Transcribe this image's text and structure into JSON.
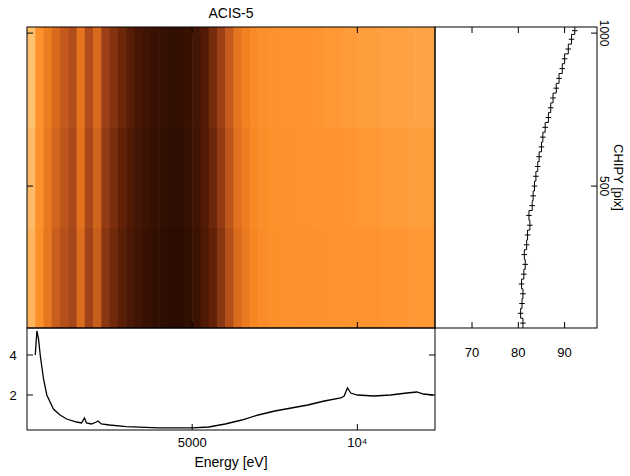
{
  "chart_data": [
    {
      "type": "heatmap",
      "title": "ACIS-5",
      "x_edges": [
        0,
        250,
        500,
        750,
        1000,
        1250,
        1500,
        1750,
        2000,
        2250,
        2500,
        2750,
        3000,
        3250,
        3500,
        3750,
        4000,
        4250,
        4500,
        4750,
        5000,
        5250,
        5500,
        5750,
        6000,
        6250,
        6500,
        6750,
        7000,
        7250,
        7500,
        7750,
        8000,
        8250,
        8500,
        8750,
        9000,
        9250,
        9500,
        9750,
        10000,
        10250,
        10500,
        10750,
        11000,
        11250,
        11500,
        11750,
        12000,
        12350
      ],
      "y_edges": [
        36,
        364,
        692,
        1020
      ],
      "cells": [
        [
          0.96,
          0.78,
          0.58,
          0.48,
          0.43,
          0.39,
          0.53,
          0.38,
          0.48,
          0.33,
          0.28,
          0.23,
          0.18,
          0.15,
          0.13,
          0.11,
          0.1,
          0.09,
          0.09,
          0.11,
          0.14,
          0.19,
          0.25,
          0.33,
          0.43,
          0.53,
          0.61,
          0.68,
          0.73,
          0.76,
          0.78,
          0.79,
          0.8,
          0.8,
          0.81,
          0.81,
          0.82,
          0.82,
          0.83,
          0.83,
          0.84,
          0.84,
          0.84,
          0.85,
          0.85,
          0.85,
          0.86,
          0.86,
          0.86
        ],
        [
          0.98,
          0.8,
          0.6,
          0.5,
          0.45,
          0.4,
          0.55,
          0.4,
          0.5,
          0.35,
          0.3,
          0.25,
          0.2,
          0.16,
          0.14,
          0.12,
          0.11,
          0.1,
          0.1,
          0.12,
          0.15,
          0.2,
          0.27,
          0.35,
          0.45,
          0.55,
          0.63,
          0.7,
          0.75,
          0.78,
          0.8,
          0.81,
          0.82,
          0.82,
          0.83,
          0.83,
          0.84,
          0.84,
          0.85,
          0.85,
          0.86,
          0.86,
          0.86,
          0.87,
          0.87,
          0.87,
          0.88,
          0.88,
          0.88
        ],
        [
          1.0,
          0.82,
          0.62,
          0.52,
          0.47,
          0.42,
          0.57,
          0.42,
          0.52,
          0.37,
          0.32,
          0.27,
          0.22,
          0.17,
          0.15,
          0.13,
          0.12,
          0.11,
          0.11,
          0.13,
          0.16,
          0.21,
          0.29,
          0.37,
          0.47,
          0.57,
          0.65,
          0.72,
          0.77,
          0.8,
          0.82,
          0.83,
          0.84,
          0.84,
          0.85,
          0.85,
          0.86,
          0.86,
          0.87,
          0.87,
          0.88,
          0.88,
          0.88,
          0.89,
          0.89,
          0.89,
          0.9,
          0.9,
          0.9
        ]
      ],
      "colors": [
        "#2b0c02",
        "#5e1f06",
        "#a8461a",
        "#e0701e",
        "#f88a24",
        "#ff9530",
        "#ffc070"
      ],
      "xlim": [
        0,
        12350
      ],
      "ylim": [
        36,
        1020
      ],
      "xticks": [
        5000,
        10000
      ],
      "yticks": [
        500,
        1000
      ],
      "tick_labels": false
    },
    {
      "type": "line",
      "x_label": "Energy [eV]",
      "color": "#000000",
      "x": [
        250,
        300,
        350,
        400,
        500,
        600,
        800,
        1000,
        1200,
        1500,
        1650,
        1740,
        1800,
        1950,
        2100,
        2150,
        2250,
        2500,
        3000,
        4000,
        5000,
        5500,
        6000,
        6500,
        7000,
        7500,
        8000,
        8500,
        9000,
        9500,
        9600,
        9700,
        9800,
        10000,
        10500,
        11000,
        11500,
        11800,
        12000,
        12300
      ],
      "values": [
        4.0,
        5.2,
        4.8,
        4.0,
        2.8,
        2.0,
        1.3,
        1.0,
        0.8,
        0.65,
        0.6,
        0.85,
        0.6,
        0.55,
        0.65,
        0.7,
        0.55,
        0.5,
        0.42,
        0.36,
        0.36,
        0.4,
        0.55,
        0.75,
        1.0,
        1.2,
        1.35,
        1.5,
        1.7,
        1.85,
        1.95,
        2.35,
        2.1,
        2.0,
        1.95,
        2.0,
        2.1,
        2.15,
        2.05,
        2.0
      ],
      "xlim": [
        0,
        12350
      ],
      "ylim": [
        0.25,
        5.35
      ],
      "xticks": [
        5000,
        {
          "value": 10000,
          "label": "10⁴"
        }
      ],
      "yticks": [
        2,
        4
      ]
    },
    {
      "type": "step",
      "orientation": "horizontal",
      "y_label": "CHIPY [pix]",
      "color": "#000000",
      "bins": [
        36,
        68,
        100,
        132,
        164,
        196,
        228,
        260,
        292,
        324,
        356,
        388,
        420,
        452,
        484,
        516,
        548,
        580,
        612,
        644,
        676,
        708,
        740,
        772,
        804,
        836,
        868,
        900,
        932,
        964,
        996,
        1020
      ],
      "values": [
        81.0,
        80.5,
        80.8,
        81.0,
        80.7,
        81.2,
        81.5,
        81.3,
        81.8,
        82.0,
        82.5,
        82.3,
        83.0,
        83.2,
        83.5,
        83.8,
        84.2,
        84.5,
        85.0,
        85.3,
        85.8,
        86.5,
        87.0,
        87.5,
        88.2,
        88.8,
        89.5,
        90.0,
        90.8,
        91.5,
        92.2
      ],
      "errors": [
        0.6,
        0.6,
        0.6,
        0.6,
        0.6,
        0.6,
        0.6,
        0.6,
        0.6,
        0.6,
        0.6,
        0.6,
        0.6,
        0.6,
        0.6,
        0.6,
        0.6,
        0.6,
        0.6,
        0.6,
        0.6,
        0.6,
        0.6,
        0.6,
        0.6,
        0.6,
        0.6,
        0.6,
        0.6,
        0.6,
        0.6
      ],
      "xlim": [
        62,
        97
      ],
      "ylim": [
        36,
        1020
      ],
      "xticks": [
        70,
        80,
        90
      ],
      "yticks": [
        500,
        1000
      ]
    }
  ]
}
